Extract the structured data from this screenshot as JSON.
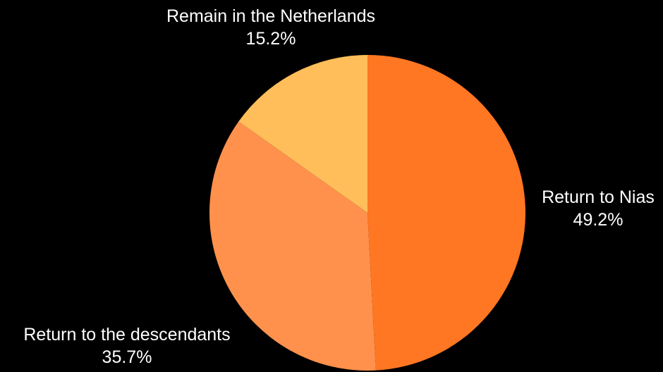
{
  "chart_data": {
    "type": "pie",
    "title": "",
    "start_angle_deg": 0,
    "direction": "clockwise",
    "slices": [
      {
        "label": "Return to Nias",
        "value": 49.2,
        "percent_label": "49.2%",
        "color": "#ff7722"
      },
      {
        "label": "Return to the descendants",
        "value": 35.7,
        "percent_label": "35.7%",
        "color": "#ff914d"
      },
      {
        "label": "Remain in the Netherlands",
        "value": 15.2,
        "percent_label": "15.2%",
        "color": "#ffbe59"
      }
    ]
  },
  "colors": {
    "background": "#000000",
    "label_text": "#ffffff"
  }
}
